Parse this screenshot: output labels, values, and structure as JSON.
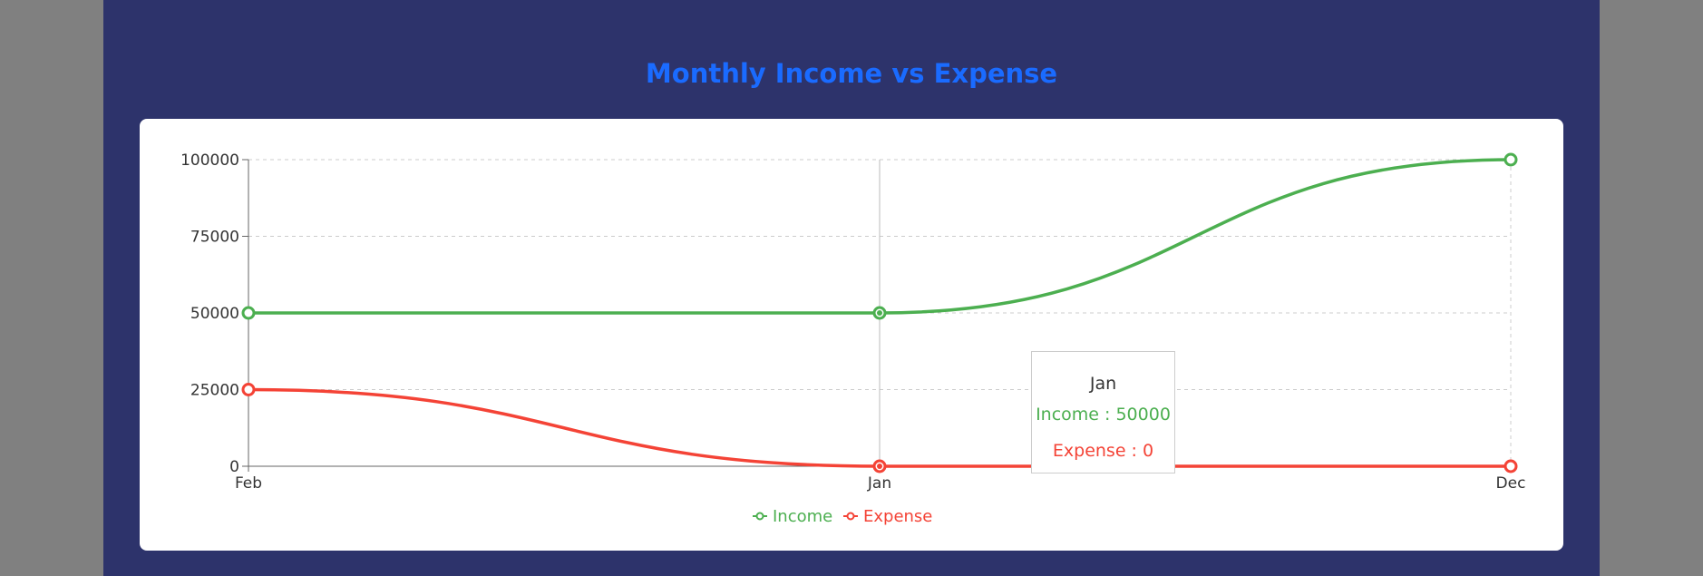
{
  "page": {
    "title": "Monthly Income vs Expense"
  },
  "chart_data": {
    "type": "line",
    "title": "Monthly Income vs Expense",
    "categories": [
      "Feb",
      "Jan",
      "Dec"
    ],
    "series": [
      {
        "name": "Income",
        "values": [
          50000,
          50000,
          100000
        ],
        "color": "#4caf50"
      },
      {
        "name": "Expense",
        "values": [
          25000,
          0,
          0
        ],
        "color": "#f44336"
      }
    ],
    "yticks": [
      0,
      25000,
      50000,
      75000,
      100000
    ],
    "ylim": [
      0,
      100000
    ],
    "grid": true,
    "legend": "bottom-center",
    "tooltip": {
      "label": "Jan",
      "income_text": "Income : 50000",
      "expense_text": "Expense : 0"
    }
  }
}
